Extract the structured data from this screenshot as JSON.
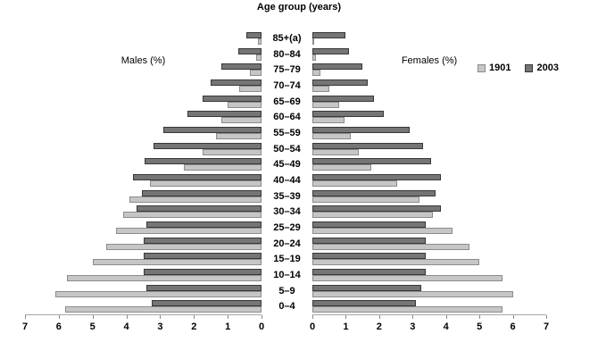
{
  "title": "Age group (years)",
  "legend": [
    {
      "label": "1901",
      "color": "#c6c6c6",
      "border": "#8c8c8c"
    },
    {
      "label": "2003",
      "color": "#757575",
      "border": "#383838"
    }
  ],
  "axis": {
    "left_label": "Males (%)",
    "right_label": "Females (%)",
    "left_ticks": [
      "7",
      "6",
      "5",
      "4",
      "3",
      "2",
      "1",
      "0"
    ],
    "right_ticks": [
      "0",
      "1",
      "2",
      "3",
      "4",
      "5",
      "6",
      "7"
    ]
  },
  "colors": {
    "bar_1901_fill": "#c6c6c6",
    "bar_1901_border": "#8c8c8c",
    "bar_2003_fill": "#757575",
    "bar_2003_border": "#383838",
    "axis_line": "#a6a6a6"
  },
  "chart_data": {
    "type": "bar",
    "variant": "population_pyramid",
    "title": "Age group (years)",
    "xlabel_left": "Males (%)",
    "xlabel_right": "Females (%)",
    "xlim": [
      0,
      7
    ],
    "ticks": [
      0,
      1,
      2,
      3,
      4,
      5,
      6,
      7
    ],
    "legend": [
      "1901",
      "2003"
    ],
    "legend_position": "right",
    "categories": [
      "85+(a)",
      "80–84",
      "75–79",
      "70–74",
      "65–69",
      "60–64",
      "55–59",
      "50–54",
      "45–49",
      "40–44",
      "35–39",
      "30–34",
      "25–29",
      "20–24",
      "15–19",
      "10–14",
      "5–9",
      "0–4"
    ],
    "males": {
      "1901": [
        0.1,
        0.15,
        0.35,
        0.65,
        1.0,
        1.2,
        1.35,
        1.75,
        2.3,
        3.3,
        3.9,
        4.1,
        4.3,
        4.6,
        5.0,
        5.75,
        6.1,
        5.8
      ],
      "2003": [
        0.45,
        0.7,
        1.2,
        1.5,
        1.75,
        2.2,
        2.9,
        3.2,
        3.45,
        3.8,
        3.55,
        3.7,
        3.4,
        3.5,
        3.5,
        3.5,
        3.4,
        3.25
      ]
    },
    "females": {
      "1901": [
        0.05,
        0.1,
        0.25,
        0.5,
        0.8,
        0.95,
        1.15,
        1.4,
        1.75,
        2.55,
        3.2,
        3.6,
        4.2,
        4.7,
        5.0,
        5.7,
        6.0,
        5.7
      ],
      "2003": [
        1.0,
        1.1,
        1.5,
        1.65,
        1.85,
        2.15,
        2.9,
        3.3,
        3.55,
        3.85,
        3.7,
        3.85,
        3.4,
        3.4,
        3.4,
        3.4,
        3.25,
        3.1
      ]
    }
  }
}
